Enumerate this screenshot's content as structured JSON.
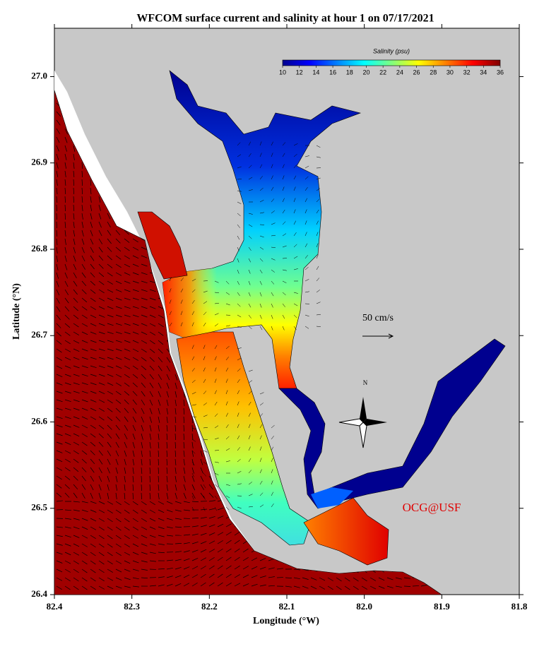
{
  "title": "WFCOM surface current and salinity at hour 1 on 07/17/2021",
  "x_axis": {
    "label": "Longitude (°W)",
    "lim": [
      82.4,
      81.8
    ],
    "ticks": [
      82.4,
      82.3,
      82.2,
      82.1,
      {
        "value": 82,
        "label": "82.0"
      },
      81.9,
      81.8
    ]
  },
  "y_axis": {
    "label": "Latitude (°N)",
    "lim": [
      26.4,
      27.056
    ],
    "ticks": [
      26.4,
      26.5,
      26.6,
      26.7,
      26.8,
      26.9,
      {
        "value": 27,
        "label": "27.0"
      }
    ]
  },
  "colorbar": {
    "title": "Salinity (psu)",
    "lim": [
      10,
      36
    ],
    "ticks": [
      10,
      12,
      14,
      16,
      18,
      20,
      22,
      24,
      26,
      28,
      30,
      32,
      34,
      36
    ],
    "colormap": [
      "#00008f",
      "#0000ff",
      "#0080ff",
      "#00ffff",
      "#80ff80",
      "#ffff00",
      "#ff8000",
      "#ff0000",
      "#800000"
    ]
  },
  "annotations": {
    "scale": "50 cm/s",
    "north": "N",
    "credit": "OCG@USF"
  }
}
